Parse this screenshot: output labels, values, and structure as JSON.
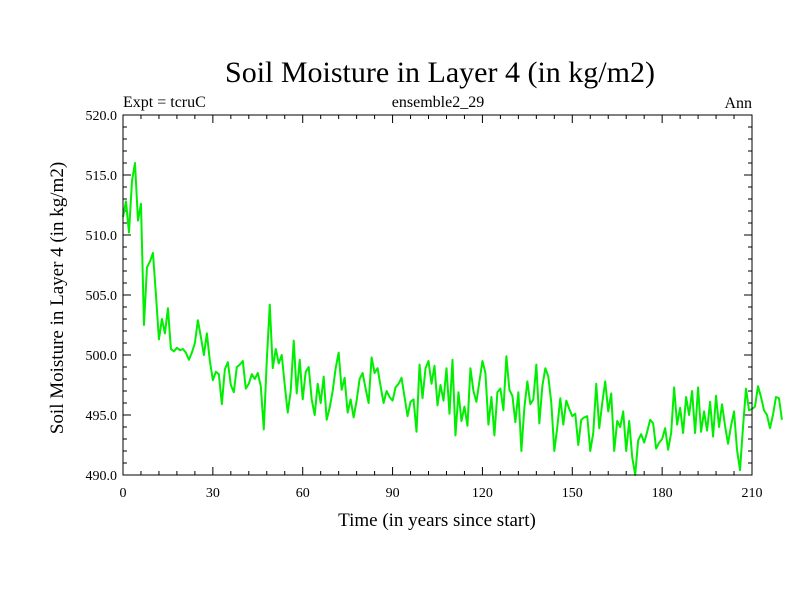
{
  "chart_data": {
    "type": "line",
    "title": "Soil Moisture in Layer 4 (in kg/m2)",
    "subtitle_left": "Expt = tcruC",
    "subtitle_center": "ensemble2_29",
    "subtitle_right": "Ann",
    "xlabel": "Time (in years since start)",
    "ylabel": "Soil Moisture in Layer 4 (in kg/m2)",
    "xlim": [
      0,
      210
    ],
    "ylim": [
      490,
      520
    ],
    "xticks": [
      "0",
      "30",
      "60",
      "90",
      "120",
      "150",
      "180",
      "210"
    ],
    "yticks": [
      "490.0",
      "495.0",
      "500.0",
      "505.0",
      "510.0",
      "515.0",
      "520.0"
    ],
    "series": [
      {
        "name": "Soil Moisture",
        "color": "#00ee00",
        "x_start": 0,
        "x_step": 1,
        "values": [
          511.5,
          512.8,
          510.2,
          514.5,
          516.0,
          511.2,
          512.6,
          502.5,
          507.3,
          507.8,
          508.5,
          505.0,
          501.3,
          503.0,
          501.8,
          503.9,
          500.5,
          500.3,
          500.6,
          500.4,
          500.5,
          500.2,
          499.6,
          500.2,
          501.0,
          502.9,
          501.5,
          500.0,
          501.8,
          499.5,
          497.9,
          498.6,
          498.4,
          495.9,
          498.8,
          499.4,
          497.5,
          496.9,
          499.0,
          499.2,
          499.5,
          497.2,
          497.6,
          498.4,
          498.0,
          498.5,
          497.4,
          493.8,
          499.5,
          504.2,
          498.9,
          500.5,
          499.3,
          500.0,
          497.5,
          495.2,
          497.0,
          501.2,
          496.8,
          499.6,
          496.3,
          498.6,
          499.0,
          496.3,
          495.0,
          497.6,
          496.0,
          498.2,
          494.6,
          495.6,
          497.0,
          498.9,
          500.2,
          497.1,
          498.1,
          495.2,
          496.3,
          494.8,
          496.2,
          498.0,
          498.5,
          497.2,
          496.0,
          499.8,
          498.5,
          498.9,
          497.4,
          496.0,
          497.0,
          496.5,
          496.2,
          497.3,
          497.6,
          498.1,
          496.5,
          494.9,
          496.1,
          496.3,
          493.6,
          499.2,
          496.4,
          498.9,
          499.5,
          497.6,
          499.1,
          495.8,
          497.5,
          496.2,
          498.9,
          495.1,
          499.6,
          493.3,
          496.9,
          494.5,
          495.7,
          494.1,
          498.9,
          497.0,
          496.1,
          497.8,
          499.5,
          498.5,
          494.2,
          496.5,
          493.3,
          496.9,
          497.2,
          495.4,
          499.9,
          497.1,
          496.6,
          494.4,
          496.9,
          492.0,
          495.6,
          497.8,
          495.9,
          496.3,
          499.2,
          494.3,
          497.4,
          498.9,
          498.2,
          496.0,
          492.0,
          494.0,
          496.4,
          494.2,
          496.2,
          495.5,
          494.9,
          495.1,
          492.5,
          494.6,
          494.8,
          494.9,
          492.0,
          493.5,
          497.6,
          493.9,
          496.0,
          497.8,
          495.3,
          496.8,
          492.0,
          494.5,
          494.0,
          495.3,
          492.0,
          494.5,
          491.5,
          490.0,
          492.9,
          493.4,
          492.7,
          493.6,
          494.6,
          494.3,
          492.2,
          492.7,
          493.0,
          493.9,
          492.1,
          493.5,
          497.3,
          494.2,
          495.6,
          493.5,
          496.5,
          495.0,
          497.0,
          493.5,
          497.3,
          493.6,
          495.3,
          493.7,
          496.1,
          493.2,
          496.6,
          494.0,
          495.9,
          494.1,
          492.6,
          494.1,
          495.3,
          492.1,
          490.4,
          494.0,
          497.2,
          495.4,
          495.5,
          495.7,
          497.4,
          496.5,
          495.4,
          495.0,
          493.9,
          495.0,
          496.5,
          496.4,
          494.6
        ]
      }
    ]
  }
}
